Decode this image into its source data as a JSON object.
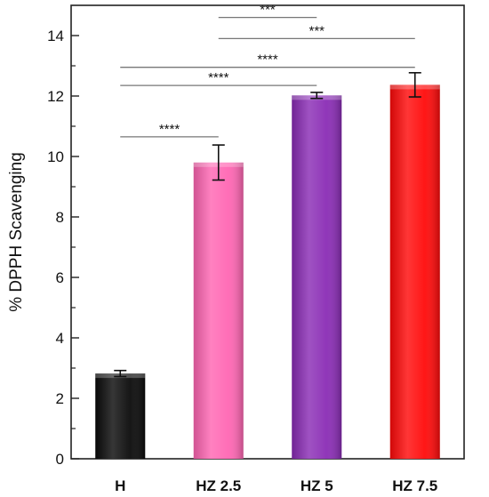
{
  "chart_data": {
    "type": "bar",
    "title": "",
    "xlabel": "",
    "ylabel": "% DPPH Scavenging",
    "ylim": [
      0,
      15
    ],
    "yticks": [
      0,
      2,
      4,
      6,
      8,
      10,
      12,
      14
    ],
    "grid": false,
    "legend": "none",
    "categories": [
      "H",
      "HZ 2.5",
      "HZ 5",
      "HZ 7.5"
    ],
    "values": [
      2.82,
      9.8,
      12.02,
      12.37
    ],
    "errors": [
      0.1,
      0.58,
      0.1,
      0.4
    ],
    "colors": [
      "#0a0a0a",
      "#ff66b3",
      "#8a2cb5",
      "#ff0a0a"
    ],
    "significance": [
      {
        "from": "H",
        "to": "HZ 2.5",
        "label": "****",
        "y": 10.65
      },
      {
        "from": "H",
        "to": "HZ 5",
        "label": "****",
        "y": 12.35
      },
      {
        "from": "H",
        "to": "HZ 7.5",
        "label": "****",
        "y": 12.95
      },
      {
        "from": "HZ 2.5",
        "to": "HZ 7.5",
        "label": "***",
        "y": 13.9
      },
      {
        "from": "HZ 2.5",
        "to": "HZ 5",
        "label": "***",
        "y": 14.6
      }
    ]
  }
}
